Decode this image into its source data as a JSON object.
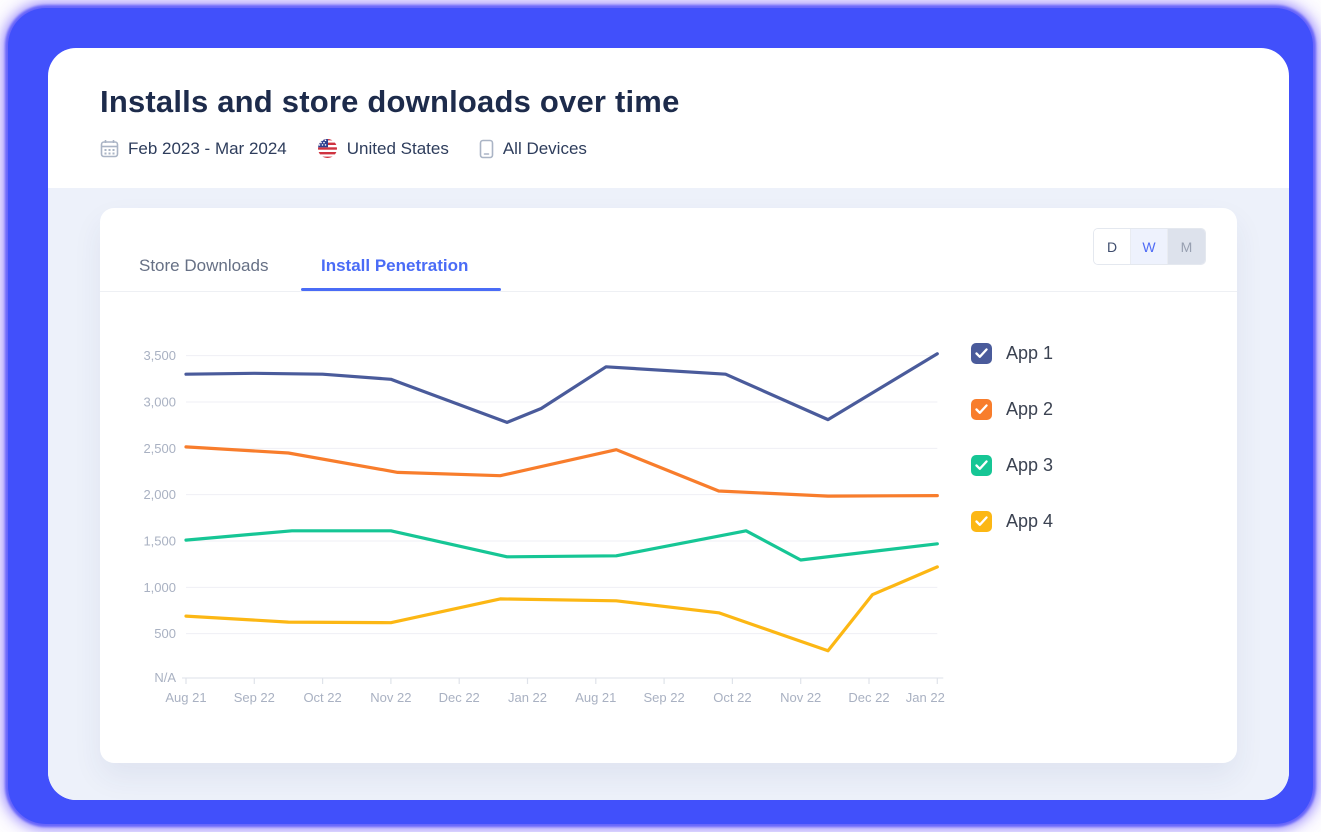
{
  "frame": {
    "border_color": "#4150fb",
    "panel_bg": "#ffffff",
    "section_bg": "#edf1fa"
  },
  "header": {
    "title": "Installs and store downloads over time",
    "meta": {
      "date_range": "Feb 2023 - Mar 2024",
      "country": "United States",
      "devices": "All Devices"
    }
  },
  "card": {
    "accent_color": "#4a6cf6",
    "tabs": [
      {
        "label": "Store Downloads",
        "active": false
      },
      {
        "label": "Install Penetration",
        "active": true
      }
    ],
    "time_toggle": {
      "options": [
        {
          "label": "D",
          "state": "default"
        },
        {
          "label": "W",
          "state": "selected"
        },
        {
          "label": "M",
          "state": "dimmed"
        }
      ],
      "selected": "W"
    },
    "chart_data": {
      "type": "line",
      "title": "Install Penetration",
      "categories": [
        "Aug 21",
        "Sep 22",
        "Oct 22",
        "Nov 22",
        "Dec 22",
        "Jan 22",
        "Aug 21",
        "Sep 22",
        "Oct 22",
        "Nov 22",
        "Dec 22",
        "Jan 22"
      ],
      "y_ticks": [
        "3,500",
        "3,000",
        "2,500",
        "2,000",
        "1,500",
        "1,000",
        "500",
        "N/A"
      ],
      "y_tick_values": [
        3500,
        3000,
        2500,
        2000,
        1500,
        1000,
        500,
        0
      ],
      "ylim": [
        0,
        3700
      ],
      "grid": true,
      "legend_position": "right",
      "series": [
        {
          "name": "App 1",
          "color": "#4a5b9b",
          "checked": true,
          "points": [
            [
              0,
              3300
            ],
            [
              1,
              3310
            ],
            [
              2,
              3300
            ],
            [
              3,
              3245
            ],
            [
              4.7,
              2780
            ],
            [
              5.2,
              2930
            ],
            [
              6.15,
              3380
            ],
            [
              7.9,
              3300
            ],
            [
              9.4,
              2810
            ],
            [
              11,
              3520
            ]
          ]
        },
        {
          "name": "App 2",
          "color": "#f87d2c",
          "checked": true,
          "points": [
            [
              0,
              2515
            ],
            [
              1.5,
              2450
            ],
            [
              3.1,
              2240
            ],
            [
              4.6,
              2205
            ],
            [
              6.3,
              2485
            ],
            [
              7.8,
              2040
            ],
            [
              9.4,
              1985
            ],
            [
              11,
              1990
            ]
          ]
        },
        {
          "name": "App 3",
          "color": "#16c695",
          "checked": true,
          "points": [
            [
              0,
              1510
            ],
            [
              1.55,
              1610
            ],
            [
              3,
              1610
            ],
            [
              4.7,
              1330
            ],
            [
              6.3,
              1340
            ],
            [
              8.2,
              1610
            ],
            [
              9,
              1295
            ],
            [
              11,
              1470
            ]
          ]
        },
        {
          "name": "App 4",
          "color": "#fcb714",
          "checked": true,
          "points": [
            [
              0,
              690
            ],
            [
              1.5,
              625
            ],
            [
              3,
              618
            ],
            [
              4.6,
              875
            ],
            [
              6.3,
              855
            ],
            [
              7.8,
              725
            ],
            [
              9.4,
              315
            ],
            [
              10.05,
              920
            ],
            [
              11,
              1220
            ]
          ]
        }
      ]
    }
  }
}
